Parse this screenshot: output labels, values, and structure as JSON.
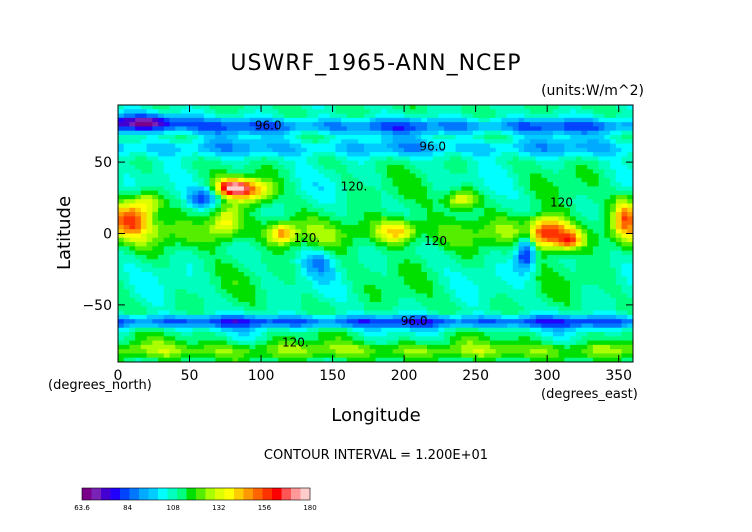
{
  "chart_data": {
    "type": "heatmap",
    "title": "USWRF_1965-ANN_NCEP",
    "units_label": "(units:W/m^2)",
    "xlabel": "Longitude",
    "ylabel": "Latitude",
    "x_unit_label": "(degrees_east)",
    "y_unit_label": "(degrees_north)",
    "xlim": [
      0,
      360
    ],
    "ylim": [
      -90,
      90
    ],
    "x_ticks": [
      0,
      50,
      100,
      150,
      200,
      250,
      300,
      350
    ],
    "y_ticks": [
      -50,
      0,
      50
    ],
    "contour_interval_text": "CONTOUR INTERVAL = 1.200E+01",
    "contour_labels": [
      {
        "text": "96.0",
        "lon": 105,
        "lat": 73
      },
      {
        "text": "96.0",
        "lon": 220,
        "lat": 58
      },
      {
        "text": "120.",
        "lon": 165,
        "lat": 30
      },
      {
        "text": "120",
        "lon": 310,
        "lat": 19
      },
      {
        "text": "120.",
        "lon": 132,
        "lat": -6
      },
      {
        "text": "120",
        "lon": 222,
        "lat": -8
      },
      {
        "text": "96.0",
        "lon": 207,
        "lat": -64
      },
      {
        "text": "120.",
        "lon": 124,
        "lat": -79
      }
    ],
    "colorbar": {
      "min": 63.6,
      "max": 180,
      "tick_labels": [
        "63.6",
        "84",
        "108",
        "132",
        "156",
        "180"
      ],
      "colors": [
        "#7a008a",
        "#7a22b8",
        "#4400d0",
        "#2200ff",
        "#0044ff",
        "#0077ff",
        "#00aaff",
        "#00ccff",
        "#00ffff",
        "#00ffbf",
        "#00ff80",
        "#00e000",
        "#55ee00",
        "#aaff00",
        "#ddff00",
        "#ffff00",
        "#ffcc00",
        "#ff9900",
        "#ff6600",
        "#ff3300",
        "#ff0000",
        "#ff5555",
        "#ff9999",
        "#ffcccc"
      ]
    }
  }
}
